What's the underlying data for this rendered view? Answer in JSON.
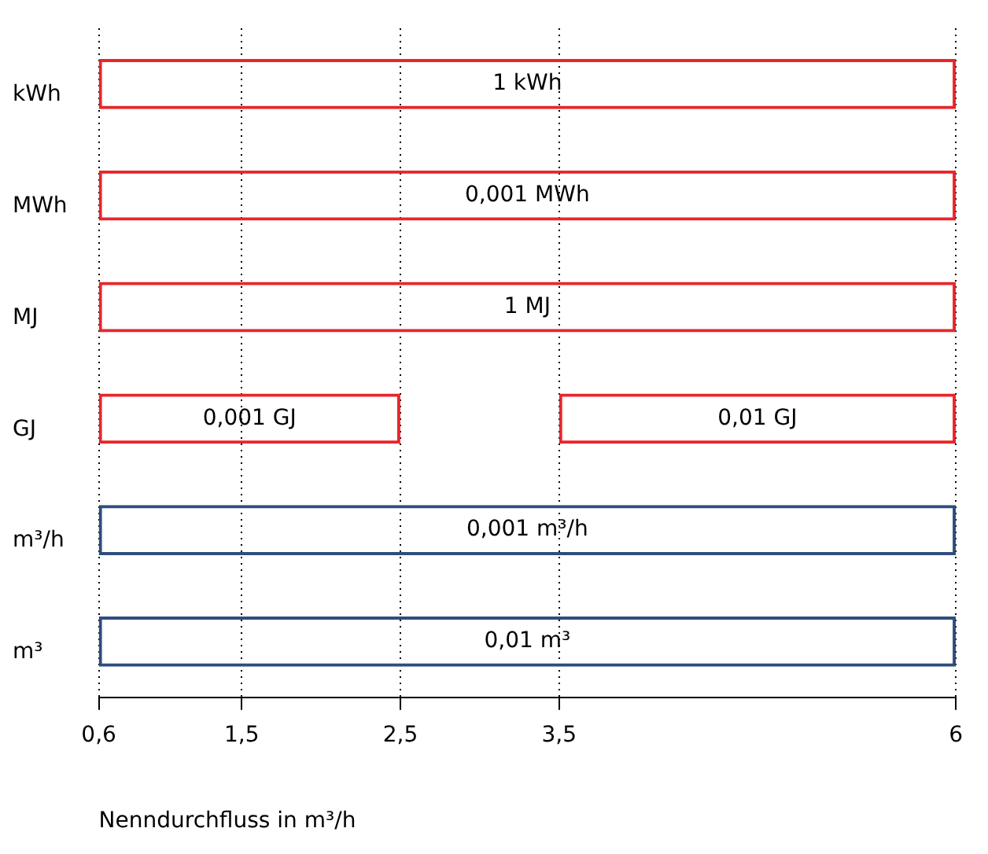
{
  "chart_data": {
    "type": "bar",
    "orientation": "horizontal",
    "categories": [
      "kWh",
      "MWh",
      "MJ",
      "GJ",
      "m³/h",
      "m³"
    ],
    "xlabel": "Nenndurchfluss in m³/h",
    "xlim": [
      0.6,
      6
    ],
    "xticks": [
      {
        "value": 0.6,
        "label": "0,6"
      },
      {
        "value": 1.5,
        "label": "1,5"
      },
      {
        "value": 2.5,
        "label": "2,5"
      },
      {
        "value": 3.5,
        "label": "3,5"
      },
      {
        "value": 6,
        "label": "6"
      }
    ],
    "grid": "x",
    "series": [
      {
        "color": "#e8262a",
        "base": [
          0.6,
          0.6,
          0.6,
          0.6,
          null,
          null
        ],
        "values": [
          5.4,
          5.4,
          5.4,
          1.9,
          null,
          null
        ]
      },
      {
        "color": "#e8262a",
        "base": [
          null,
          null,
          null,
          3.5,
          null,
          null
        ],
        "values": [
          null,
          null,
          null,
          2.5,
          null,
          null
        ]
      },
      {
        "color": "#2e4e7e",
        "base": [
          null,
          null,
          null,
          null,
          0.6,
          0.6
        ],
        "values": [
          null,
          null,
          null,
          null,
          5.4,
          5.4
        ]
      }
    ],
    "annotations": [
      "1 kWh",
      "0,001 MWh",
      "1 MJ",
      "0,001 GJ",
      "0,01 GJ",
      "0,001 m³/h",
      "0,01 m³"
    ]
  }
}
